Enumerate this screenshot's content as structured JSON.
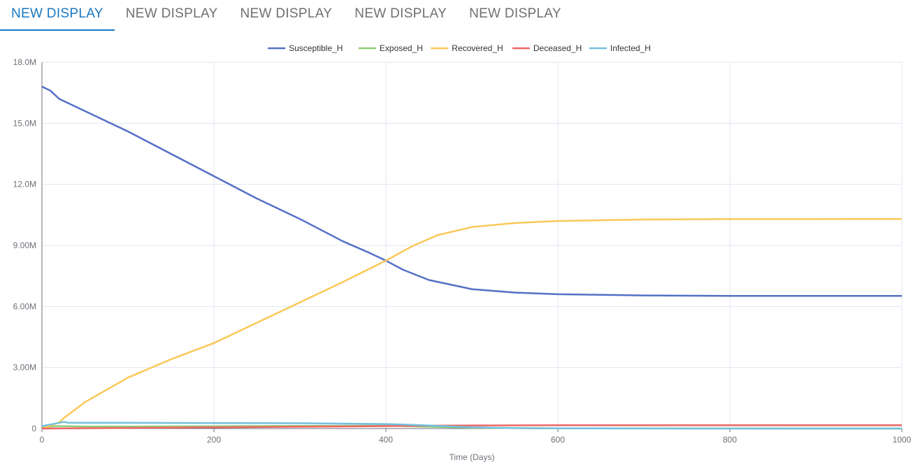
{
  "tabs": [
    {
      "label": "NEW DISPLAY",
      "active": true
    },
    {
      "label": "NEW DISPLAY",
      "active": false
    },
    {
      "label": "NEW DISPLAY",
      "active": false
    },
    {
      "label": "NEW DISPLAY",
      "active": false
    },
    {
      "label": "NEW DISPLAY",
      "active": false
    }
  ],
  "chart_data": {
    "type": "line",
    "xlabel": "Time (Days)",
    "ylabel": "",
    "xlim": [
      0,
      1000
    ],
    "ylim": [
      0,
      18000000
    ],
    "x_ticks": [
      0,
      200,
      400,
      600,
      800,
      1000
    ],
    "x_tick_labels": [
      "0",
      "200",
      "400",
      "600",
      "800",
      "1000"
    ],
    "y_ticks": [
      0,
      3000000,
      6000000,
      9000000,
      12000000,
      15000000,
      18000000
    ],
    "y_tick_labels": [
      "0",
      "3.00M",
      "6.00M",
      "9.00M",
      "12.0M",
      "15.0M",
      "18.0M"
    ],
    "grid": true,
    "legend_position": "top-center",
    "series": [
      {
        "name": "Susceptible_H",
        "color": "#5470c6",
        "x": [
          0,
          10,
          20,
          30,
          50,
          100,
          150,
          200,
          250,
          300,
          350,
          380,
          400,
          420,
          450,
          500,
          550,
          600,
          700,
          800,
          1000
        ],
        "y": [
          16800000,
          16600000,
          16200000,
          16000000,
          15600000,
          14600000,
          13500000,
          12400000,
          11300000,
          10300000,
          9200000,
          8650000,
          8250000,
          7800000,
          7300000,
          6850000,
          6680000,
          6600000,
          6540000,
          6520000,
          6520000
        ]
      },
      {
        "name": "Exposed_H",
        "color": "#91cc75",
        "x": [
          0,
          20,
          50,
          100,
          200,
          300,
          400,
          450,
          500,
          600,
          800,
          1000
        ],
        "y": [
          80000,
          120000,
          100000,
          100000,
          110000,
          130000,
          140000,
          90000,
          40000,
          10000,
          2000,
          0
        ]
      },
      {
        "name": "Recovered_H",
        "color": "#fac858",
        "x": [
          0,
          20,
          25,
          50,
          100,
          150,
          200,
          250,
          300,
          350,
          400,
          430,
          460,
          500,
          550,
          600,
          700,
          800,
          1000
        ],
        "y": [
          0,
          300000,
          500000,
          1300000,
          2500000,
          3400000,
          4200000,
          5200000,
          6200000,
          7200000,
          8250000,
          8950000,
          9500000,
          9900000,
          10100000,
          10200000,
          10270000,
          10290000,
          10300000
        ]
      },
      {
        "name": "Deceased_H",
        "color": "#ee6666",
        "x": [
          0,
          100,
          200,
          300,
          400,
          450,
          500,
          600,
          800,
          1000
        ],
        "y": [
          0,
          30000,
          60000,
          90000,
          120000,
          140000,
          150000,
          160000,
          165000,
          165000
        ]
      },
      {
        "name": "Infected_H",
        "color": "#73c0de",
        "x": [
          0,
          10,
          20,
          25,
          30,
          50,
          100,
          200,
          300,
          350,
          400,
          420,
          450,
          500,
          550,
          600,
          800,
          1000
        ],
        "y": [
          120000,
          200000,
          280000,
          330000,
          290000,
          280000,
          280000,
          270000,
          260000,
          240000,
          220000,
          200000,
          150000,
          60000,
          20000,
          8000,
          1000,
          0
        ]
      }
    ]
  }
}
